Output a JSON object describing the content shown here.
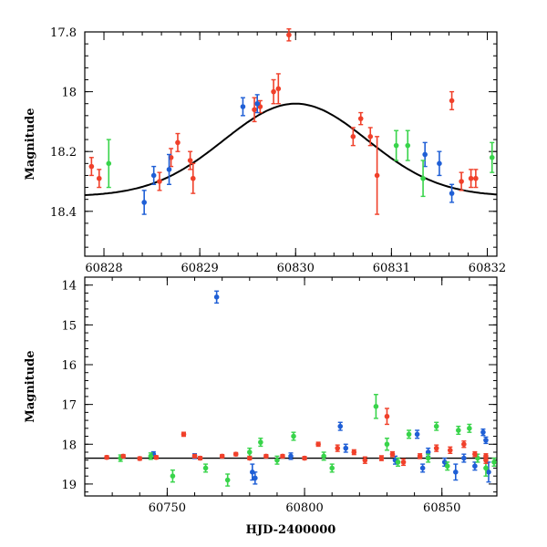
{
  "colors": {
    "blue": "#1f5fd6",
    "red": "#f0402a",
    "green": "#38d44a",
    "axis": "#000000"
  },
  "chart_data": [
    {
      "type": "scatter",
      "xlabel": "",
      "ylabel": "Magnitude",
      "xlim": [
        60827.8,
        60832.1
      ],
      "ylim": [
        18.55,
        17.8
      ],
      "y_inverted": true,
      "xticks": [
        60828,
        60829,
        60830,
        60831,
        60832
      ],
      "xtick_labels": [
        "60828",
        "60829",
        "60830",
        "60831",
        "60832"
      ],
      "yticks": [
        17.8,
        18,
        18.2,
        18.4
      ],
      "ytick_labels": [
        "17.8",
        "18",
        "18.2",
        "18.4"
      ],
      "model_curve": {
        "type": "gaussian",
        "baseline": 18.35,
        "peak": 18.04,
        "center": 60830.0,
        "sigma": 0.75
      },
      "series": [
        {
          "color": "red",
          "points": [
            [
              60827.87,
              18.25,
              0.03
            ],
            [
              60827.95,
              18.29,
              0.03
            ],
            [
              60828.58,
              18.3,
              0.03
            ],
            [
              60828.7,
              18.22,
              0.03
            ],
            [
              60828.77,
              18.17,
              0.03
            ],
            [
              60828.9,
              18.23,
              0.03
            ],
            [
              60828.93,
              18.29,
              0.05
            ],
            [
              60829.57,
              18.06,
              0.04
            ],
            [
              60829.63,
              18.05,
              0.02
            ],
            [
              60829.77,
              18.0,
              0.04
            ],
            [
              60829.82,
              17.99,
              0.05
            ],
            [
              60829.93,
              17.81,
              0.02
            ],
            [
              60830.6,
              18.15,
              0.03
            ],
            [
              60830.68,
              18.09,
              0.02
            ],
            [
              60830.78,
              18.15,
              0.03
            ],
            [
              60830.85,
              18.28,
              0.13
            ],
            [
              60831.63,
              18.03,
              0.03
            ],
            [
              60831.73,
              18.3,
              0.03
            ],
            [
              60831.83,
              18.29,
              0.03
            ],
            [
              60831.88,
              18.29,
              0.03
            ]
          ]
        },
        {
          "color": "blue",
          "points": [
            [
              60828.42,
              18.37,
              0.04
            ],
            [
              60828.52,
              18.28,
              0.03
            ],
            [
              60828.68,
              18.26,
              0.05
            ],
            [
              60829.45,
              18.05,
              0.03
            ],
            [
              60829.6,
              18.04,
              0.03
            ],
            [
              60831.35,
              18.21,
              0.04
            ],
            [
              60831.5,
              18.24,
              0.04
            ],
            [
              60831.63,
              18.34,
              0.03
            ]
          ]
        },
        {
          "color": "green",
          "points": [
            [
              60828.05,
              18.24,
              0.08
            ],
            [
              60831.05,
              18.18,
              0.05
            ],
            [
              60831.17,
              18.18,
              0.05
            ],
            [
              60831.33,
              18.29,
              0.06
            ],
            [
              60832.05,
              18.22,
              0.05
            ]
          ]
        }
      ]
    },
    {
      "type": "scatter",
      "xlabel": "HJD-2400000",
      "ylabel": "Magnitude",
      "xlim": [
        60720,
        60870
      ],
      "ylim": [
        19.3,
        13.8
      ],
      "y_inverted": true,
      "baseline": 18.35,
      "xticks": [
        60750,
        60800,
        60850
      ],
      "xtick_labels": [
        "60750",
        "60800",
        "60850"
      ],
      "yticks": [
        14,
        15,
        16,
        17,
        18,
        19
      ],
      "ytick_labels": [
        "14",
        "15",
        "16",
        "17",
        "18",
        "19"
      ],
      "series": [
        {
          "color": "blue",
          "points": [
            [
              60768,
              14.3,
              0.15
            ],
            [
              60781,
              18.7,
              0.2
            ],
            [
              60782,
              18.85,
              0.15
            ],
            [
              60813,
              17.55,
              0.1
            ],
            [
              60815,
              18.1,
              0.1
            ],
            [
              60841,
              17.75,
              0.1
            ],
            [
              60843,
              18.6,
              0.1
            ],
            [
              60845,
              18.2,
              0.1
            ],
            [
              60851,
              18.45,
              0.1
            ],
            [
              60855,
              18.7,
              0.2
            ],
            [
              60858,
              18.35,
              0.1
            ],
            [
              60862,
              18.55,
              0.1
            ],
            [
              60865,
              17.7,
              0.08
            ],
            [
              60866,
              17.9,
              0.08
            ],
            [
              60867,
              18.7,
              0.25
            ],
            [
              60833,
              18.4,
              0.1
            ],
            [
              60795,
              18.3,
              0.08
            ],
            [
              60745,
              18.25,
              0.06
            ],
            [
              60760,
              18.3,
              0.06
            ]
          ]
        },
        {
          "color": "green",
          "points": [
            [
              60752,
              18.8,
              0.15
            ],
            [
              60764,
              18.6,
              0.1
            ],
            [
              60772,
              18.9,
              0.15
            ],
            [
              60780,
              18.2,
              0.1
            ],
            [
              60784,
              17.95,
              0.1
            ],
            [
              60790,
              18.4,
              0.1
            ],
            [
              60796,
              17.8,
              0.1
            ],
            [
              60807,
              18.3,
              0.1
            ],
            [
              60810,
              18.6,
              0.1
            ],
            [
              60826,
              17.05,
              0.3
            ],
            [
              60830,
              18.0,
              0.15
            ],
            [
              60834,
              18.45,
              0.1
            ],
            [
              60838,
              17.75,
              0.1
            ],
            [
              60845,
              18.35,
              0.1
            ],
            [
              60848,
              17.55,
              0.1
            ],
            [
              60852,
              18.55,
              0.1
            ],
            [
              60856,
              17.65,
              0.1
            ],
            [
              60860,
              17.6,
              0.1
            ],
            [
              60863,
              18.35,
              0.1
            ],
            [
              60866,
              18.6,
              0.2
            ],
            [
              60869,
              18.45,
              0.1
            ],
            [
              60744,
              18.3,
              0.08
            ],
            [
              60733,
              18.35,
              0.08
            ]
          ]
        },
        {
          "color": "red",
          "points": [
            [
              60728,
              18.33,
              0.04
            ],
            [
              60734,
              18.3,
              0.04
            ],
            [
              60740,
              18.36,
              0.04
            ],
            [
              60746,
              18.33,
              0.04
            ],
            [
              60756,
              17.75,
              0.05
            ],
            [
              60762,
              18.35,
              0.04
            ],
            [
              60770,
              18.3,
              0.04
            ],
            [
              60775,
              18.25,
              0.04
            ],
            [
              60786,
              18.3,
              0.04
            ],
            [
              60800,
              18.35,
              0.04
            ],
            [
              60805,
              18.0,
              0.05
            ],
            [
              60812,
              18.1,
              0.08
            ],
            [
              60818,
              18.2,
              0.06
            ],
            [
              60822,
              18.4,
              0.08
            ],
            [
              60828,
              18.35,
              0.06
            ],
            [
              60830,
              17.3,
              0.2
            ],
            [
              60832,
              18.25,
              0.06
            ],
            [
              60836,
              18.45,
              0.08
            ],
            [
              60842,
              18.3,
              0.06
            ],
            [
              60848,
              18.1,
              0.08
            ],
            [
              60853,
              18.15,
              0.08
            ],
            [
              60858,
              18.0,
              0.08
            ],
            [
              60862,
              18.25,
              0.06
            ],
            [
              60866,
              18.4,
              0.08
            ],
            [
              60866,
              18.3,
              0.06
            ],
            [
              60760,
              18.3,
              0.04
            ],
            [
              60780,
              18.35,
              0.04
            ],
            [
              60792,
              18.3,
              0.04
            ]
          ]
        }
      ]
    }
  ]
}
